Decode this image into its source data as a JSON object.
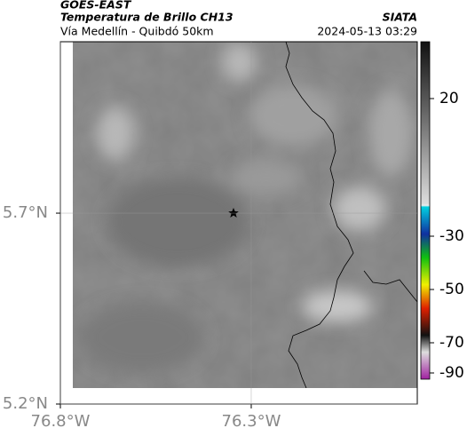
{
  "header": {
    "title": "GOES-EAST",
    "subtitle": "Temperatura de Brillo CH13",
    "region": "Vía Medellín - Quibdó 50km",
    "source": "SIATA",
    "datetime": "2024-05-13 03:29"
  },
  "map": {
    "lon_extent": [
      -76.8,
      -75.865
    ],
    "lat_extent": [
      5.2,
      6.149
    ],
    "lon_ticks": [
      {
        "value": -76.8,
        "label": "76.8°W"
      },
      {
        "value": -76.3,
        "label": "76.3°W"
      }
    ],
    "lat_ticks": [
      {
        "value": 5.7,
        "label": "5.7°N"
      },
      {
        "value": 5.2,
        "label": "5.2°N"
      }
    ]
  },
  "colorbar": {
    "ticks": [
      20,
      -30,
      -50,
      -70,
      -90
    ]
  }
}
